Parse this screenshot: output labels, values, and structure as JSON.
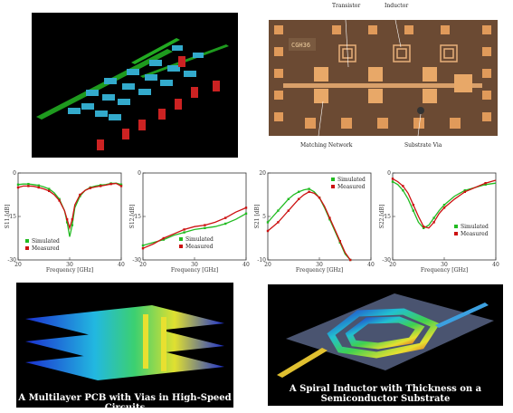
{
  "top_left": {
    "description_free": true
  },
  "chip": {
    "labels": {
      "transistor": "Transistor",
      "inductor": "Inductor",
      "matching_network": "Matching Network",
      "substrate_via": "Substrate Via",
      "chip_mark": "CGH36"
    }
  },
  "captions": {
    "pcb": "A Multilayer PCB with Vias in High-Speed Circuits",
    "inductor_line1": "A Spiral Inductor with Thickness on a",
    "inductor_line2": "Semiconductor Substrate"
  },
  "colors": {
    "simulated": "#22bb22",
    "measured": "#cc1111",
    "pcb_trace": "#22aa22",
    "pcb_pad": "#33aacc",
    "pcb_red": "#cc2222"
  },
  "chart_data": [
    {
      "type": "line",
      "xlabel": "Frequency [GHz]",
      "ylabel": "S11 [dB]",
      "xlim": [
        20,
        40
      ],
      "ylim": [
        -30,
        0
      ],
      "xticks": [
        "20",
        "30",
        "40"
      ],
      "yticks": [
        "0",
        "-15",
        "-30"
      ],
      "legend": "bottom-left",
      "series": [
        {
          "name": "Simulated",
          "x": [
            20,
            21,
            22,
            23,
            24,
            25,
            26,
            27,
            28,
            29,
            29.5,
            30,
            30.5,
            31,
            32,
            33,
            34,
            35,
            36,
            37,
            38,
            39,
            40
          ],
          "values": [
            -4,
            -3.8,
            -3.8,
            -4,
            -4.3,
            -4.8,
            -5.5,
            -6.8,
            -9,
            -13,
            -17,
            -22,
            -18,
            -12,
            -8,
            -6,
            -5,
            -4.5,
            -4.2,
            -4,
            -3.6,
            -3.5,
            -4
          ]
        },
        {
          "name": "Measured",
          "x": [
            20,
            21,
            22,
            23,
            24,
            25,
            26,
            27,
            28,
            29,
            29.5,
            30,
            30.5,
            31,
            32,
            33,
            34,
            35,
            36,
            37,
            38,
            39,
            40
          ],
          "values": [
            -5,
            -4.5,
            -4.5,
            -4.6,
            -5,
            -5.5,
            -6.2,
            -7.5,
            -9.5,
            -13,
            -16,
            -19,
            -16,
            -11,
            -7.5,
            -6,
            -5.2,
            -4.8,
            -4.5,
            -4.2,
            -3.8,
            -3.6,
            -4.5
          ]
        }
      ]
    },
    {
      "type": "line",
      "xlabel": "Frequency [GHz]",
      "ylabel": "S12 [dB]",
      "xlim": [
        20,
        40
      ],
      "ylim": [
        -30,
        0
      ],
      "xticks": [
        "20",
        "30",
        "40"
      ],
      "yticks": [
        "0",
        "-15",
        "-30"
      ],
      "legend": "bottom-center",
      "series": [
        {
          "name": "Simulated",
          "x": [
            20,
            22,
            24,
            26,
            28,
            30,
            32,
            34,
            36,
            38,
            40
          ],
          "values": [
            -25,
            -24,
            -23,
            -21.5,
            -20.5,
            -19.5,
            -19,
            -18.5,
            -17.5,
            -16,
            -14
          ]
        },
        {
          "name": "Measured",
          "x": [
            20,
            22,
            24,
            26,
            28,
            30,
            32,
            34,
            36,
            38,
            40
          ],
          "values": [
            -26,
            -24.5,
            -22.5,
            -21,
            -19.5,
            -18.5,
            -18,
            -17,
            -15.5,
            -13.5,
            -12
          ]
        }
      ]
    },
    {
      "type": "line",
      "xlabel": "Frequency [GHz]",
      "ylabel": "S21 [dB]",
      "xlim": [
        20,
        40
      ],
      "ylim": [
        -10,
        20
      ],
      "xticks": [
        "20",
        "30",
        "40"
      ],
      "yticks": [
        "20",
        "5",
        "-10"
      ],
      "legend": "top-right",
      "series": [
        {
          "name": "Simulated",
          "x": [
            20,
            21,
            22,
            23,
            24,
            25,
            26,
            27,
            28,
            29,
            30,
            31,
            32,
            33,
            34,
            35,
            36
          ],
          "values": [
            3,
            5,
            7,
            9,
            11,
            12.5,
            13.5,
            14.2,
            14.5,
            13.5,
            11.5,
            8,
            4,
            0,
            -4,
            -8,
            -10
          ]
        },
        {
          "name": "Measured",
          "x": [
            20,
            21,
            22,
            23,
            24,
            25,
            26,
            27,
            28,
            29,
            30,
            31,
            32,
            33,
            34,
            35,
            36
          ],
          "values": [
            0,
            1.5,
            3,
            5,
            7,
            9,
            11,
            12.5,
            13.5,
            13,
            11.5,
            8.5,
            4.5,
            0.5,
            -3.5,
            -7.5,
            -10
          ]
        }
      ]
    },
    {
      "type": "line",
      "xlabel": "Frequency [GHz]",
      "ylabel": "S22 [dB]",
      "xlim": [
        20,
        40
      ],
      "ylim": [
        -30,
        0
      ],
      "xticks": [
        "20",
        "30",
        "40"
      ],
      "yticks": [
        "0",
        "-15",
        "-30"
      ],
      "legend": "center-right",
      "series": [
        {
          "name": "Simulated",
          "x": [
            20,
            21,
            22,
            23,
            24,
            25,
            26,
            27,
            28,
            29,
            30,
            32,
            34,
            36,
            38,
            40
          ],
          "values": [
            -3,
            -4,
            -6,
            -9,
            -13,
            -17,
            -19,
            -18,
            -15.5,
            -13,
            -11,
            -8,
            -6,
            -5,
            -4,
            -3.5
          ]
        },
        {
          "name": "Measured",
          "x": [
            20,
            21,
            22,
            23,
            24,
            25,
            26,
            27,
            28,
            29,
            30,
            32,
            34,
            36,
            38,
            40
          ],
          "values": [
            -2,
            -3,
            -4.5,
            -7,
            -11,
            -15,
            -18.5,
            -19,
            -17,
            -14,
            -12,
            -9,
            -6.5,
            -5,
            -3.5,
            -2.5
          ]
        }
      ]
    }
  ]
}
